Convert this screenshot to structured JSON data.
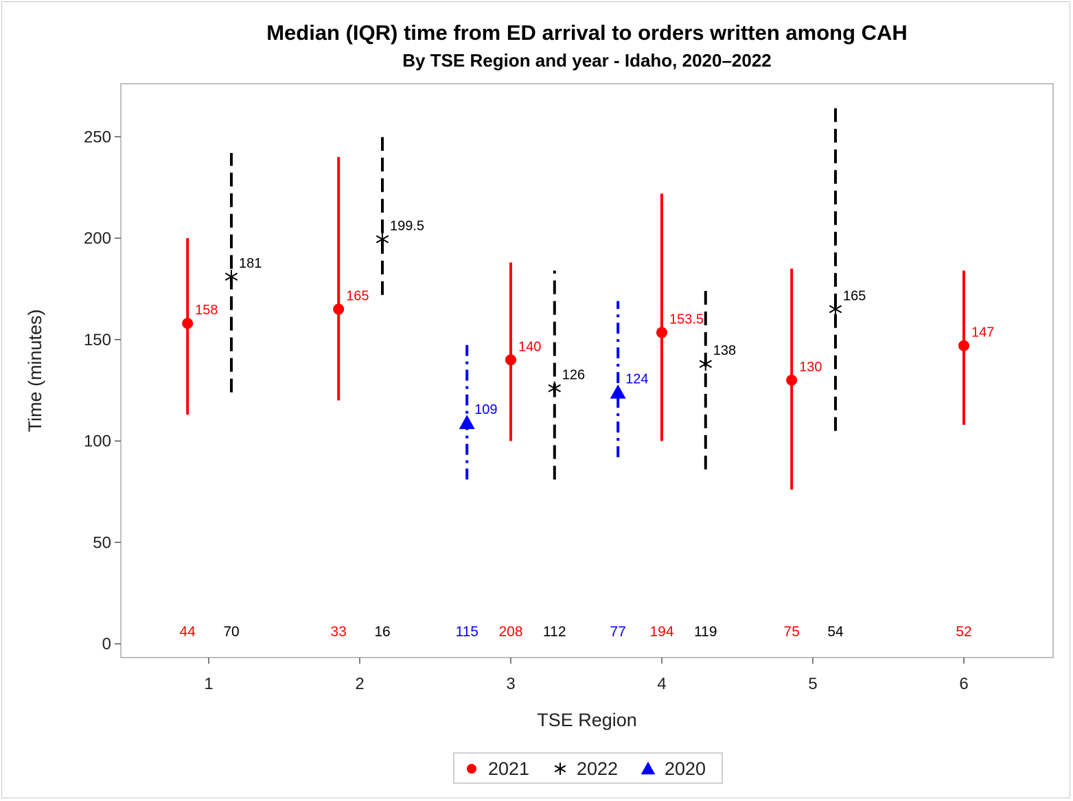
{
  "chart_data": {
    "type": "scatter",
    "title": "Median (IQR) time from ED arrival to orders written among CAH",
    "subtitle": "By TSE Region and year - Idaho, 2020–2022",
    "xlabel": "TSE Region",
    "ylabel": "Time (minutes)",
    "x_categories": [
      "1",
      "2",
      "3",
      "4",
      "5",
      "6"
    ],
    "yticks": [
      "0",
      "50",
      "100",
      "150",
      "200",
      "250"
    ],
    "ylim": [
      -8,
      275
    ],
    "grid": false,
    "legend_position": "bottom-center",
    "legend": [
      {
        "name": "2021",
        "marker": "circle",
        "color": "#ff0000"
      },
      {
        "name": "2022",
        "marker": "asterisk",
        "color": "#000000"
      },
      {
        "name": "2020",
        "marker": "triangle",
        "color": "#0000ff"
      }
    ],
    "series": [
      {
        "name": "2021",
        "color": "#ff0000",
        "marker": "circle",
        "line_style": "solid",
        "points": [
          {
            "region": 1,
            "offset": -0.14,
            "median": 158,
            "q1": 113,
            "q3": 200,
            "label": "158",
            "n": "44"
          },
          {
            "region": 2,
            "offset": -0.14,
            "median": 165,
            "q1": 120,
            "q3": 240,
            "label": "165",
            "n": "33"
          },
          {
            "region": 3,
            "offset": 0.0,
            "median": 140,
            "q1": 100,
            "q3": 188,
            "label": "140",
            "n": "208"
          },
          {
            "region": 4,
            "offset": 0.0,
            "median": 153.5,
            "q1": 100,
            "q3": 222,
            "label": "153.5",
            "n": "194"
          },
          {
            "region": 5,
            "offset": -0.14,
            "median": 130,
            "q1": 76,
            "q3": 185,
            "label": "130",
            "n": "75"
          },
          {
            "region": 6,
            "offset": 0.0,
            "median": 147,
            "q1": 108,
            "q3": 184,
            "label": "147",
            "n": "52"
          }
        ]
      },
      {
        "name": "2022",
        "color": "#000000",
        "marker": "asterisk",
        "line_style": "dashed",
        "points": [
          {
            "region": 1,
            "offset": 0.15,
            "median": 181,
            "q1": 124,
            "q3": 242,
            "label": "181",
            "n": "70"
          },
          {
            "region": 2,
            "offset": 0.15,
            "median": 199.5,
            "q1": 172,
            "q3": 251,
            "label": "199.5",
            "n": "16"
          },
          {
            "region": 3,
            "offset": 0.29,
            "median": 126,
            "q1": 81,
            "q3": 184,
            "label": "126",
            "n": "112"
          },
          {
            "region": 4,
            "offset": 0.29,
            "median": 138,
            "q1": 86,
            "q3": 177,
            "label": "138",
            "n": "119"
          },
          {
            "region": 5,
            "offset": 0.15,
            "median": 165,
            "q1": 105,
            "q3": 265,
            "label": "165",
            "n": "54"
          }
        ]
      },
      {
        "name": "2020",
        "color": "#0000ff",
        "marker": "triangle",
        "line_style": "dash-dot",
        "points": [
          {
            "region": 3,
            "offset": -0.29,
            "median": 109,
            "q1": 81,
            "q3": 150,
            "label": "109",
            "n": "115"
          },
          {
            "region": 4,
            "offset": -0.29,
            "median": 124,
            "q1": 92,
            "q3": 169,
            "label": "124",
            "n": "77"
          }
        ]
      }
    ]
  }
}
